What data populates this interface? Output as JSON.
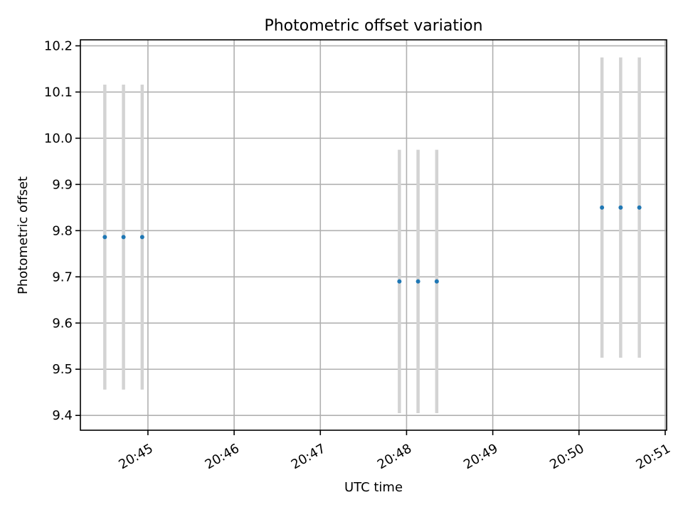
{
  "chart_data": {
    "type": "scatter",
    "title": "Photometric offset variation",
    "xlabel": "UTC time",
    "ylabel": "Photometric offset",
    "x_ticks": [
      "20:45",
      "20:46",
      "20:47",
      "20:48",
      "20:49",
      "20:50",
      "20:51"
    ],
    "y_ticks": [
      "9.4",
      "9.5",
      "9.6",
      "9.7",
      "9.8",
      "9.9",
      "10.0",
      "10.1",
      "10.2"
    ],
    "xlim": [
      "20:44:13",
      "20:51:01"
    ],
    "ylim": [
      9.368,
      10.213
    ],
    "grid": true,
    "colors": {
      "point": "#1f77b4",
      "errorbar": "#d3d3d3"
    },
    "series": [
      {
        "points": [
          {
            "x": "20:44:30",
            "y": 9.786,
            "err": 0.33
          },
          {
            "x": "20:44:43",
            "y": 9.786,
            "err": 0.33
          },
          {
            "x": "20:44:56",
            "y": 9.786,
            "err": 0.33
          },
          {
            "x": "20:47:55",
            "y": 9.69,
            "err": 0.285
          },
          {
            "x": "20:48:08",
            "y": 9.69,
            "err": 0.285
          },
          {
            "x": "20:48:21",
            "y": 9.69,
            "err": 0.285
          },
          {
            "x": "20:50:16",
            "y": 9.85,
            "err": 0.325
          },
          {
            "x": "20:50:29",
            "y": 9.85,
            "err": 0.325
          },
          {
            "x": "20:50:42",
            "y": 9.85,
            "err": 0.325
          }
        ]
      }
    ]
  }
}
